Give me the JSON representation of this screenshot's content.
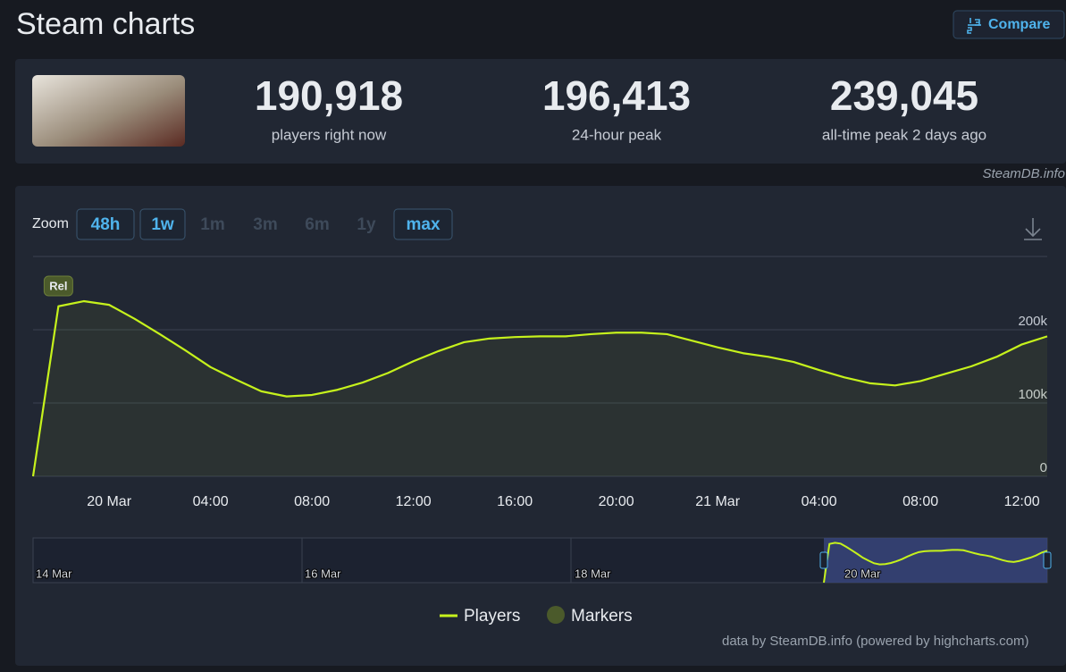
{
  "header": {
    "title": "Steam charts",
    "compare_button": "Compare"
  },
  "stats": [
    {
      "value": "190,918",
      "label": "players right now"
    },
    {
      "value": "196,413",
      "label": "24-hour peak"
    },
    {
      "value": "239,045",
      "label": "all-time peak 2 days ago"
    }
  ],
  "watermark": "SteamDB.info",
  "zoom": {
    "label": "Zoom",
    "options": [
      "48h",
      "1w",
      "1m",
      "3m",
      "6m",
      "1y",
      "max"
    ],
    "enabled": [
      true,
      true,
      false,
      false,
      false,
      false,
      true
    ]
  },
  "chart_data": {
    "type": "line",
    "categories": [
      null,
      null,
      null,
      "20 Mar",
      null,
      null,
      null,
      "04:00",
      null,
      null,
      null,
      "08:00",
      null,
      null,
      null,
      "12:00",
      null,
      null,
      null,
      "16:00",
      null,
      null,
      null,
      "20:00",
      null,
      null,
      null,
      "21 Mar",
      null,
      null,
      null,
      "04:00",
      null,
      null,
      null,
      "08:00",
      null,
      null,
      null,
      "12:00",
      null
    ],
    "series": [
      {
        "name": "Players",
        "color": "#c6f21c",
        "values": [
          0,
          232000,
          239000,
          234000,
          215000,
          194000,
          172000,
          149000,
          132000,
          116000,
          109000,
          111000,
          118000,
          128000,
          141000,
          157000,
          171000,
          183000,
          188000,
          190000,
          191000,
          191000,
          194000,
          196000,
          196000,
          194000,
          185000,
          176000,
          168000,
          163000,
          156000,
          145000,
          135000,
          127000,
          124000,
          130000,
          140000,
          150000,
          163000,
          180000,
          191000
        ]
      }
    ],
    "ylim": [
      0,
      300000
    ],
    "yticks": [
      0,
      {
        "value": 100000,
        "label": "100k"
      },
      {
        "value": 200000,
        "label": "200k"
      }
    ],
    "grid": true,
    "markers": {
      "name": "Markers",
      "color": "#4b5a2b",
      "items": [
        {
          "label": "Rel"
        }
      ]
    },
    "navigator_labels": [
      "14 Mar",
      "16 Mar",
      "18 Mar",
      "20 Mar"
    ]
  },
  "credits": "data by SteamDB.info (powered by highcharts.com)"
}
